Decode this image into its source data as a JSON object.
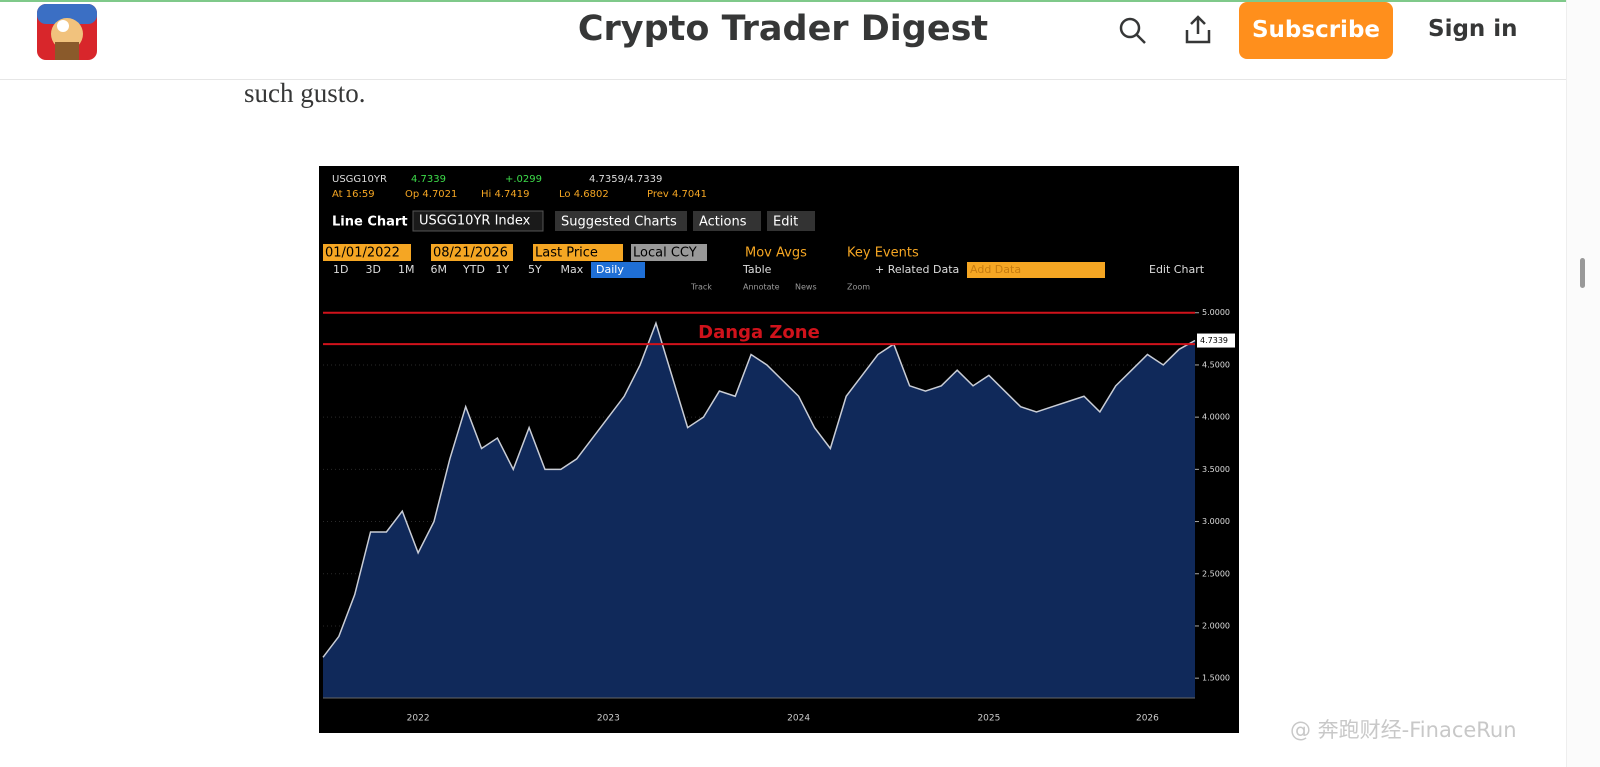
{
  "header": {
    "title": "Crypto Trader Digest",
    "subscribe": "Subscribe",
    "sign_in": "Sign in"
  },
  "article": {
    "text": "such gusto."
  },
  "terminal": {
    "ticker": "USGG10YR",
    "last": "4.7339",
    "change": "+.0299",
    "bid_ask": "4.7359/4.7339",
    "time": "At 16:59",
    "open": "Op 4.7021",
    "high": "Hi 4.7419",
    "low": "Lo 4.6802",
    "prev": "Prev 4.7041",
    "chart_kind": "Line Chart",
    "security": "USGG10YR Index",
    "menus": [
      "Suggested Charts",
      "Actions",
      "Edit"
    ],
    "start_date": "01/01/2022",
    "end_date": "08/21/2026",
    "field": "Last Price",
    "currency": "Local CCY",
    "options": [
      "Mov Avgs",
      "Key Events"
    ],
    "periods": [
      "1D",
      "3D",
      "1M",
      "6M",
      "YTD",
      "1Y",
      "5Y",
      "Max"
    ],
    "frequency": "Daily",
    "table": "Table",
    "related": "+ Related Data",
    "add_data": "Add Data",
    "edit_chart": "Edit Chart",
    "tools": [
      "Track",
      "Annotate",
      "News",
      "Zoom"
    ]
  },
  "chart_data": {
    "type": "area",
    "color": "#c9cdd6",
    "fill": "#10295a",
    "categories": [
      null,
      null,
      null,
      null,
      null,
      null,
      "2022",
      null,
      null,
      null,
      null,
      null,
      null,
      null,
      null,
      null,
      null,
      null,
      "2023",
      null,
      null,
      null,
      null,
      null,
      null,
      null,
      null,
      null,
      null,
      null,
      "2024",
      null,
      null,
      null,
      null,
      null,
      null,
      null,
      null,
      null,
      null,
      null,
      "2025",
      null,
      null,
      null,
      null,
      null,
      null,
      null,
      null,
      null,
      "2026",
      null,
      null,
      null
    ],
    "values": [
      1.7,
      1.9,
      2.3,
      2.9,
      2.9,
      3.1,
      2.7,
      3.0,
      3.6,
      4.1,
      3.7,
      3.8,
      3.5,
      3.9,
      3.5,
      3.5,
      3.6,
      3.8,
      4.0,
      4.2,
      4.5,
      4.9,
      4.4,
      3.9,
      4.0,
      4.25,
      4.2,
      4.6,
      4.5,
      4.35,
      4.2,
      3.9,
      3.7,
      4.2,
      4.4,
      4.6,
      4.7,
      4.3,
      4.25,
      4.3,
      4.45,
      4.3,
      4.4,
      4.25,
      4.1,
      4.05,
      4.1,
      4.15,
      4.2,
      4.05,
      4.3,
      4.45,
      4.6,
      4.5,
      4.65,
      4.7339
    ],
    "ylim": [
      1.31,
      5.17
    ],
    "yticks": [
      {
        "value": 1.5,
        "label": "1.5000"
      },
      {
        "value": 2,
        "label": "2.0000"
      },
      {
        "value": 2.5,
        "label": "2.5000"
      },
      {
        "value": 3,
        "label": "3.0000"
      },
      {
        "value": 3.5,
        "label": "3.5000"
      },
      {
        "value": 4,
        "label": "4.0000"
      },
      {
        "value": 4.5,
        "label": "4.5000"
      },
      {
        "value": 5,
        "label": "5.0000"
      }
    ],
    "reference_lines": [
      5.0,
      4.7
    ],
    "reference_color": "#d0121b",
    "annotation": "Danga Zone",
    "grid": true
  },
  "watermark": "@ 奔跑财经-FinaceRun"
}
